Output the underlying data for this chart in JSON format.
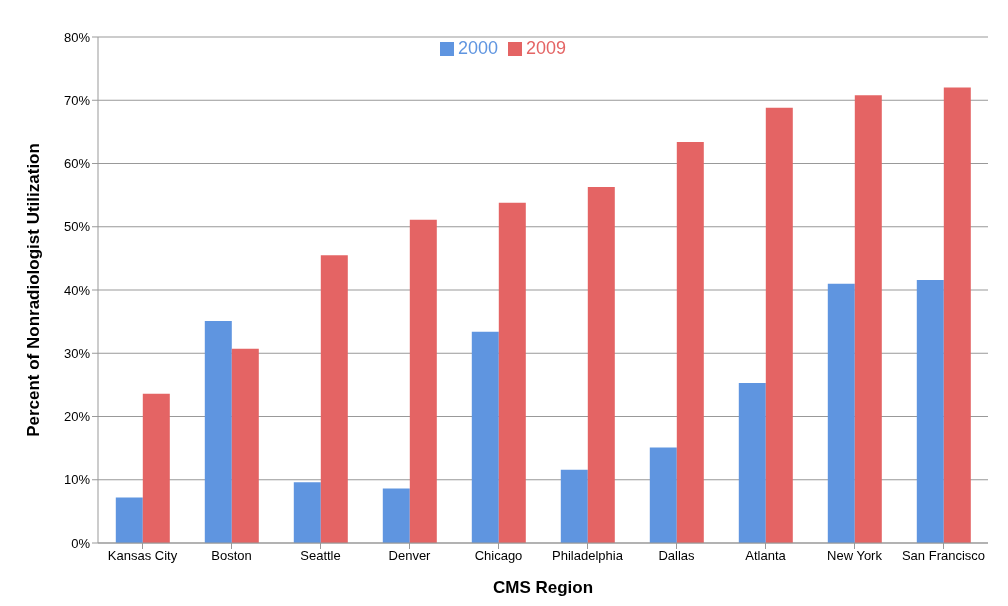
{
  "chart_data": {
    "type": "bar",
    "xlabel": "CMS Region",
    "ylabel": "Percent of Nonradiologist Utilization",
    "categories": [
      "Kansas City",
      "Boston",
      "Seattle",
      "Denver",
      "Chicago",
      "Philadelphia",
      "Dallas",
      "Atlanta",
      "New York",
      "San Francisco"
    ],
    "series": [
      {
        "name": "2000",
        "color": "#5f95e0",
        "values": [
          7.2,
          35.1,
          9.6,
          8.6,
          33.4,
          11.6,
          15.1,
          25.3,
          41.0,
          41.6
        ]
      },
      {
        "name": "2009",
        "color": "#e46464",
        "values": [
          23.6,
          30.7,
          45.5,
          51.1,
          53.8,
          56.3,
          63.4,
          68.8,
          70.8,
          72.0
        ]
      }
    ],
    "ylim": [
      0,
      80
    ],
    "yticks": [
      {
        "value": 0,
        "label": "0%"
      },
      {
        "value": 10,
        "label": "10%"
      },
      {
        "value": 20,
        "label": "20%"
      },
      {
        "value": 30,
        "label": "30%"
      },
      {
        "value": 40,
        "label": "40%"
      },
      {
        "value": 50,
        "label": "50%"
      },
      {
        "value": 60,
        "label": "60%"
      },
      {
        "value": 70,
        "label": "70%"
      },
      {
        "value": 80,
        "label": "80%"
      }
    ],
    "grid": "y",
    "legend": "top"
  }
}
